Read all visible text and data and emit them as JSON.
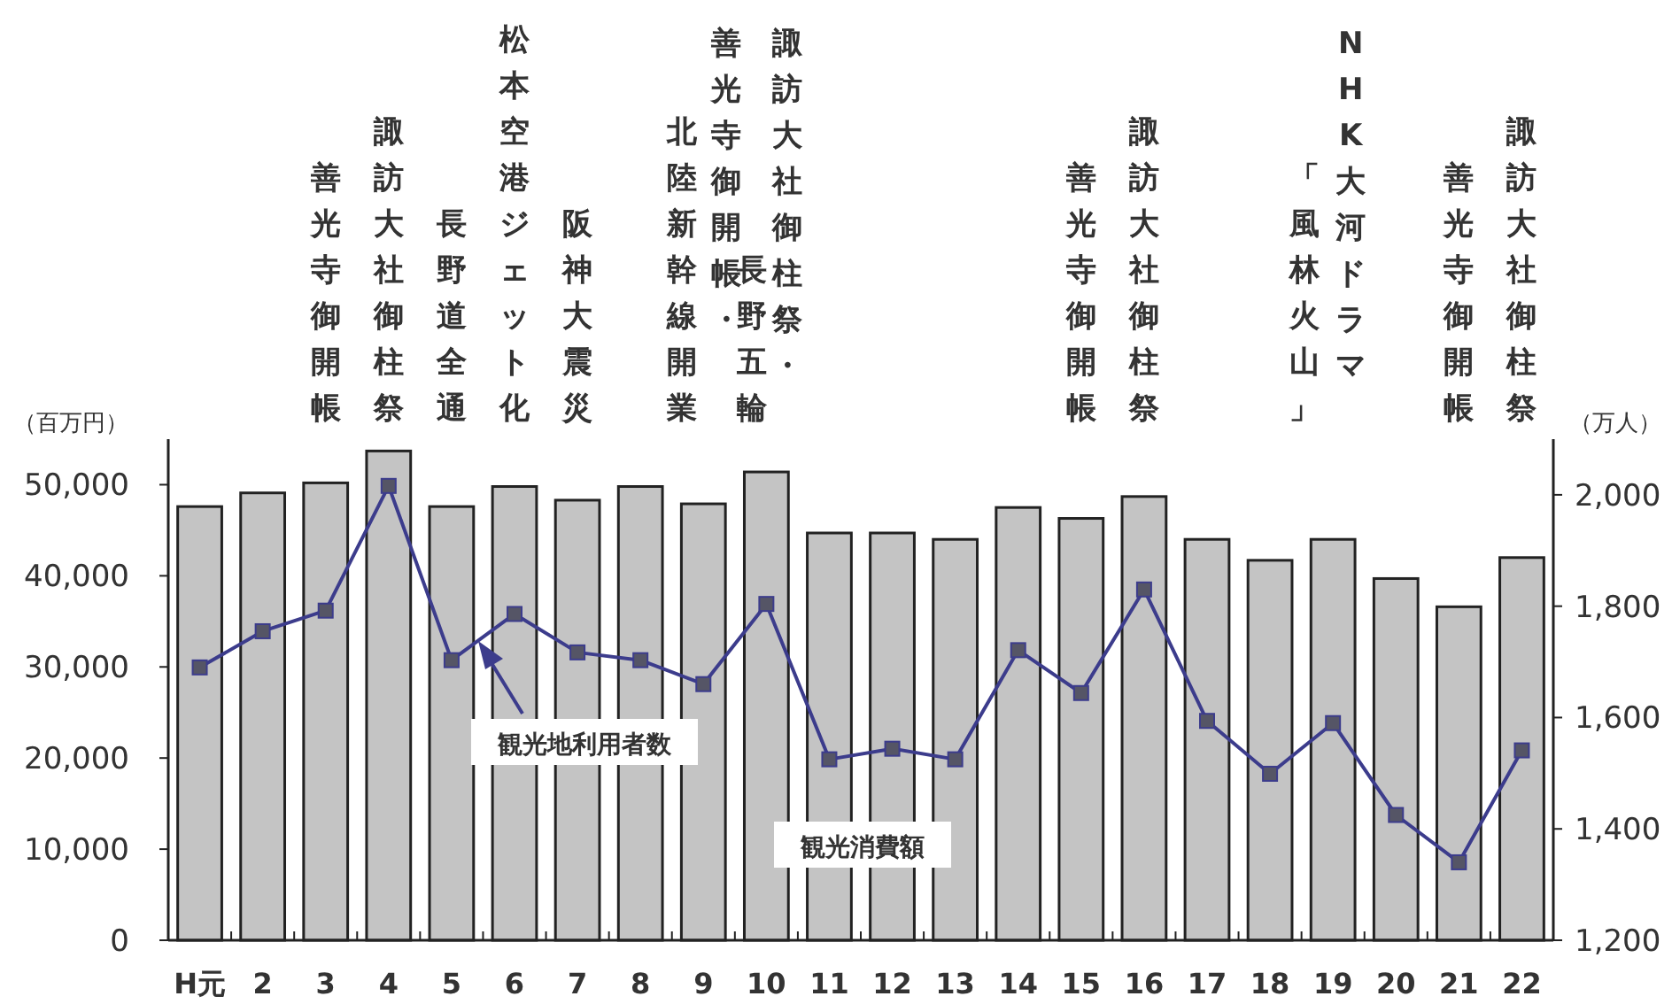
{
  "chart_data": {
    "type": "bar",
    "ylabel": "（百万円）",
    "y2label": "（万人）",
    "categories": [
      "H元",
      "2",
      "3",
      "4",
      "5",
      "6",
      "7",
      "8",
      "9",
      "10",
      "11",
      "12",
      "13",
      "14",
      "15",
      "16",
      "17",
      "18",
      "19",
      "20",
      "21",
      "22"
    ],
    "series": [
      {
        "name": "観光消費額",
        "color": "#c4c4c4",
        "values": [
          47600,
          49100,
          50200,
          53700,
          47600,
          49800,
          48300,
          49800,
          47900,
          51400,
          44700,
          44700,
          44000,
          47500,
          46300,
          48700,
          44000,
          41700,
          44000,
          39700,
          36600,
          42000
        ]
      },
      {
        "name": "観光地利用者数",
        "type": "line",
        "axis": "y2",
        "color": "#3c3c8c",
        "marker": "square",
        "values": [
          1690,
          1755,
          1792,
          2016,
          1703,
          1786,
          1717,
          1703,
          1660,
          1804,
          1525,
          1544,
          1525,
          1721,
          1644,
          1830,
          1594,
          1499,
          1590,
          1425,
          1340,
          1541
        ]
      }
    ],
    "ylim": [
      0,
      55000
    ],
    "yticks": [
      {
        "value": 0,
        "label": "0"
      },
      {
        "value": 10000,
        "label": "10,000"
      },
      {
        "value": 20000,
        "label": "20,000"
      },
      {
        "value": 30000,
        "label": "30,000"
      },
      {
        "value": 40000,
        "label": "40,000"
      },
      {
        "value": 50000,
        "label": "50,000"
      }
    ],
    "y2lim": [
      1200,
      2100
    ],
    "y2ticks": [
      {
        "value": 1200,
        "label": "1,200"
      },
      {
        "value": 1400,
        "label": "1,400"
      },
      {
        "value": 1600,
        "label": "1,600"
      },
      {
        "value": 1800,
        "label": "1,800"
      },
      {
        "value": 2000,
        "label": "2,000"
      }
    ],
    "annotations": [
      "善光寺御開帳",
      "諏訪大社御柱祭",
      "長野道全通",
      "松本空港ジェット化",
      "阪神大震災",
      "善光寺御開帳・",
      "北陸新幹線開業",
      "諏訪大社御柱祭・",
      "長野五輪",
      "善光寺御開帳",
      "諏訪大社御柱祭",
      "NHK大河ドラマ",
      "「風林火山」",
      "善光寺御開帳",
      "諏訪大社御柱祭"
    ]
  }
}
